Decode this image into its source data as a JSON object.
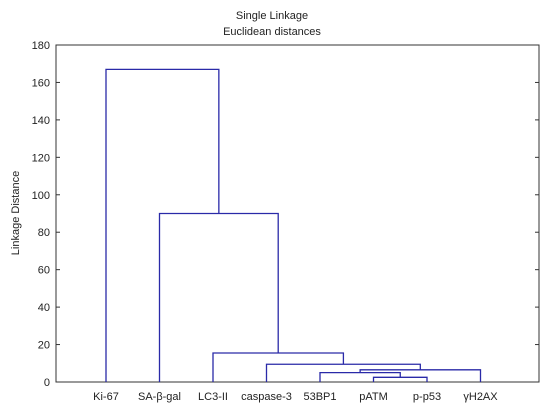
{
  "chart_data": {
    "type": "dendrogram",
    "title": "Single Linkage",
    "subtitle": "Euclidean distances",
    "ylabel": "Linkage Distance",
    "xlabel": "",
    "ylim": [
      0,
      180
    ],
    "yticks": [
      0,
      20,
      40,
      60,
      80,
      100,
      120,
      140,
      160,
      180
    ],
    "grid": false,
    "leaves": [
      "Ki-67",
      "SA-β-gal",
      "LC3-II",
      "caspase-3",
      "53BP1",
      "pATM",
      "p-p53",
      "γH2AX"
    ],
    "merges": [
      {
        "left": "pATM",
        "right": "p-p53",
        "height": 2.5,
        "node": "n1"
      },
      {
        "left": "53BP1",
        "right": "n1",
        "height": 5.0,
        "node": "n2"
      },
      {
        "left": "n2",
        "right": "γH2AX",
        "height": 6.5,
        "node": "n3"
      },
      {
        "left": "caspase-3",
        "right": "n3",
        "height": 9.5,
        "node": "n4"
      },
      {
        "left": "LC3-II",
        "right": "n4",
        "height": 15.5,
        "node": "n5"
      },
      {
        "left": "SA-β-gal",
        "right": "n5",
        "height": 90.0,
        "node": "n6"
      },
      {
        "left": "Ki-67",
        "right": "n6",
        "height": 167.0,
        "node": "n7"
      }
    ],
    "colors": {
      "tree": "#2a2aa8",
      "axis": "#333333"
    }
  }
}
